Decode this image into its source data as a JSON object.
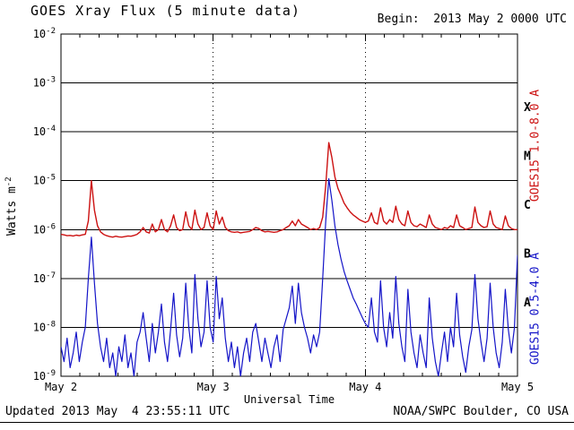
{
  "title": "GOES Xray Flux (5 minute data)",
  "begin_label": "Begin:  2013 May 2 0000 UTC",
  "footer": {
    "updated": "Updated 2013 May  4 23:55:11 UTC",
    "source": "NOAA/SWPC Boulder, CO USA"
  },
  "axes": {
    "ylabel_main": "Watts m",
    "ylabel_sup": "-2"
  },
  "colors": {
    "long": "#cc1111",
    "short": "#1414c8",
    "grid": "#000000",
    "background": "#ffffff",
    "text": "#000000"
  },
  "chart_data": {
    "type": "line",
    "title": "GOES Xray Flux (5 minute data)",
    "xlabel": "Universal Time",
    "ylabel": "Watts m^-2",
    "x_unit": "days since 2013 May 2 0000 UTC",
    "xlim_days": [
      0,
      3
    ],
    "ylim_exp": [
      -9,
      -2
    ],
    "grid": {
      "h_lines_exp": [
        -3,
        -4,
        -5,
        -6,
        -7,
        -8
      ],
      "v_lines_days": [
        1,
        2
      ]
    },
    "x_ticks": [
      {
        "d": 0,
        "label": "May 2"
      },
      {
        "d": 1,
        "label": "May 3"
      },
      {
        "d": 2,
        "label": "May 4"
      },
      {
        "d": 3,
        "label": "May 5"
      }
    ],
    "y_ticks_exp": [
      -2,
      -3,
      -4,
      -5,
      -6,
      -7,
      -8,
      -9
    ],
    "flare_classes": [
      {
        "label": "X",
        "exp": -3.5
      },
      {
        "label": "M",
        "exp": -4.5
      },
      {
        "label": "C",
        "exp": -5.5
      },
      {
        "label": "B",
        "exp": -6.5
      },
      {
        "label": "A",
        "exp": -7.5
      }
    ],
    "series": [
      {
        "name": "GOES15 1.0-8.0 A",
        "color": "#cc1111",
        "x_start": 0,
        "x_step": 0.02,
        "values": [
          8e-07,
          7.8e-07,
          7.5e-07,
          7.6e-07,
          7.4e-07,
          7.7e-07,
          7.5e-07,
          7.8e-07,
          8e-07,
          1.5e-06,
          1e-05,
          2.5e-06,
          1.2e-06,
          9e-07,
          8e-07,
          7.5e-07,
          7.2e-07,
          7e-07,
          7.3e-07,
          7.1e-07,
          7e-07,
          7.2e-07,
          7.4e-07,
          7.3e-07,
          7.6e-07,
          8e-07,
          9e-07,
          1.1e-06,
          9e-07,
          8.5e-07,
          1.3e-06,
          9e-07,
          1e-06,
          1.6e-06,
          1e-06,
          9e-07,
          1.2e-06,
          2e-06,
          1.1e-06,
          9.5e-07,
          1e-06,
          2.3e-06,
          1.2e-06,
          1e-06,
          2.5e-06,
          1.3e-06,
          1e-06,
          1.1e-06,
          2.2e-06,
          1.2e-06,
          1e-06,
          2.4e-06,
          1.3e-06,
          1.8e-06,
          1.1e-06,
          9.5e-07,
          9e-07,
          8.8e-07,
          9e-07,
          8.6e-07,
          8.8e-07,
          9e-07,
          9.2e-07,
          1e-06,
          1.1e-06,
          1.05e-06,
          9.5e-07,
          9e-07,
          9.2e-07,
          9e-07,
          8.8e-07,
          9e-07,
          9.5e-07,
          1e-06,
          1.1e-06,
          1.2e-06,
          1.5e-06,
          1.2e-06,
          1.6e-06,
          1.3e-06,
          1.2e-06,
          1.1e-06,
          1e-06,
          1.05e-06,
          1e-06,
          1.1e-06,
          1.8e-06,
          8e-06,
          6e-05,
          3e-05,
          1.2e-05,
          7e-06,
          5e-06,
          3.5e-06,
          2.8e-06,
          2.3e-06,
          2e-06,
          1.8e-06,
          1.6e-06,
          1.5e-06,
          1.4e-06,
          1.5e-06,
          2.2e-06,
          1.4e-06,
          1.3e-06,
          2.8e-06,
          1.5e-06,
          1.3e-06,
          1.6e-06,
          1.4e-06,
          3e-06,
          1.6e-06,
          1.3e-06,
          1.2e-06,
          2.4e-06,
          1.4e-06,
          1.2e-06,
          1.15e-06,
          1.3e-06,
          1.2e-06,
          1.1e-06,
          2e-06,
          1.3e-06,
          1.1e-06,
          1.05e-06,
          1e-06,
          1.1e-06,
          1.05e-06,
          1.2e-06,
          1.1e-06,
          2e-06,
          1.2e-06,
          1.1e-06,
          1e-06,
          1.05e-06,
          1.1e-06,
          2.9e-06,
          1.4e-06,
          1.2e-06,
          1.1e-06,
          1.15e-06,
          2.4e-06,
          1.3e-06,
          1.1e-06,
          1.05e-06,
          1e-06,
          1.9e-06,
          1.2e-06,
          1.05e-06,
          1e-06,
          1e-06
        ]
      },
      {
        "name": "GOES15 0.5-4.0 A",
        "color": "#1414c8",
        "x_start": 0,
        "x_step": 0.02,
        "values": [
          4e-09,
          2e-09,
          6e-09,
          1.5e-09,
          3e-09,
          8e-09,
          2e-09,
          5e-09,
          1e-08,
          1e-07,
          7e-07,
          8e-08,
          1.2e-08,
          4e-09,
          2e-09,
          6e-09,
          1.5e-09,
          3e-09,
          1e-09,
          4e-09,
          2e-09,
          7e-09,
          1.5e-09,
          3e-09,
          1e-09,
          5e-09,
          8e-09,
          2e-08,
          6e-09,
          2e-09,
          1.2e-08,
          3e-09,
          8e-09,
          3e-08,
          5e-09,
          2e-09,
          9e-09,
          5e-08,
          7e-09,
          2.5e-09,
          6e-09,
          8e-08,
          1e-08,
          3e-09,
          1.2e-07,
          1.5e-08,
          4e-09,
          8e-09,
          9e-08,
          1e-08,
          5e-09,
          1.1e-07,
          1.5e-08,
          4e-08,
          6e-09,
          2e-09,
          5e-09,
          1.5e-09,
          4e-09,
          1e-09,
          3e-09,
          6e-09,
          2e-09,
          8e-09,
          1.2e-08,
          5e-09,
          2e-09,
          6e-09,
          3e-09,
          1.5e-09,
          4e-09,
          7e-09,
          2e-09,
          9e-09,
          1.5e-08,
          2.5e-08,
          7e-08,
          1.2e-08,
          8e-08,
          2e-08,
          1e-08,
          6e-09,
          3e-09,
          7e-09,
          4e-09,
          8e-09,
          1e-07,
          1.5e-06,
          1.1e-05,
          4e-06,
          1.2e-06,
          5e-07,
          2.5e-07,
          1.4e-07,
          9e-08,
          6e-08,
          4e-08,
          3e-08,
          2.2e-08,
          1.6e-08,
          1.2e-08,
          1e-08,
          4e-08,
          8e-09,
          5e-09,
          9e-08,
          1e-08,
          4e-09,
          2e-08,
          6e-09,
          1.1e-07,
          1.2e-08,
          4e-09,
          2e-09,
          6e-08,
          8e-09,
          3e-09,
          1.5e-09,
          7e-09,
          3e-09,
          1.5e-09,
          4e-08,
          6e-09,
          2e-09,
          1e-09,
          3e-09,
          8e-09,
          2e-09,
          1e-08,
          4e-09,
          5e-08,
          7e-09,
          2.5e-09,
          1.2e-09,
          4e-09,
          9e-09,
          1.2e-07,
          1.5e-08,
          5e-09,
          2e-09,
          6e-09,
          8e-08,
          1e-08,
          3e-09,
          1.5e-09,
          5e-09,
          6e-08,
          9e-09,
          3e-09,
          1e-08,
          3e-07
        ]
      }
    ]
  }
}
